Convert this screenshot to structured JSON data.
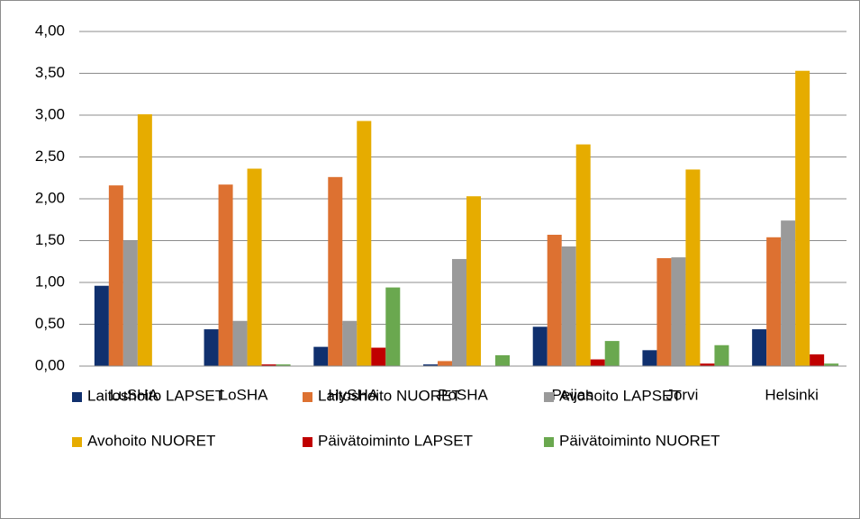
{
  "chart_data": {
    "type": "bar",
    "categories": [
      "LuSHA",
      "LoSHA",
      "HySHA",
      "PoSHA",
      "Peijas",
      "Jorvi",
      "Helsinki"
    ],
    "series": [
      {
        "name": "Laitoshoito LAPSET",
        "color": "#10306e",
        "values": [
          0.96,
          0.44,
          0.23,
          0.02,
          0.47,
          0.19,
          0.44
        ]
      },
      {
        "name": "Laitoshoito NUORET",
        "color": "#dd7131",
        "values": [
          2.16,
          2.17,
          2.26,
          0.06,
          1.57,
          1.29,
          1.54
        ]
      },
      {
        "name": "Avohoito LAPSET",
        "color": "#9a9a9a",
        "values": [
          1.5,
          0.54,
          0.54,
          1.28,
          1.43,
          1.3,
          1.74
        ]
      },
      {
        "name": "Avohoito NUORET",
        "color": "#e6ac00",
        "values": [
          3.01,
          2.36,
          2.93,
          2.03,
          2.65,
          2.35,
          3.53
        ]
      },
      {
        "name": "Päivätoiminto LAPSET",
        "color": "#c00000",
        "values": [
          0,
          0.02,
          0.22,
          0,
          0.08,
          0.03,
          0.14
        ]
      },
      {
        "name": "Päivätoiminto NUORET",
        "color": "#6aa84f",
        "values": [
          0,
          0.02,
          0.94,
          0.13,
          0.3,
          0.25,
          0.03
        ]
      }
    ],
    "ylim": [
      0,
      4
    ],
    "yticks": [
      {
        "value": 0,
        "label": "0,00"
      },
      {
        "value": 0.5,
        "label": "0,50"
      },
      {
        "value": 1,
        "label": "1,00"
      },
      {
        "value": 1.5,
        "label": "1,50"
      },
      {
        "value": 2,
        "label": "2,00"
      },
      {
        "value": 2.5,
        "label": "2,50"
      },
      {
        "value": 3,
        "label": "3,00"
      },
      {
        "value": 3.5,
        "label": "3,50"
      },
      {
        "value": 4,
        "label": "4,00"
      }
    ],
    "grid": true,
    "legend": "bottom"
  }
}
